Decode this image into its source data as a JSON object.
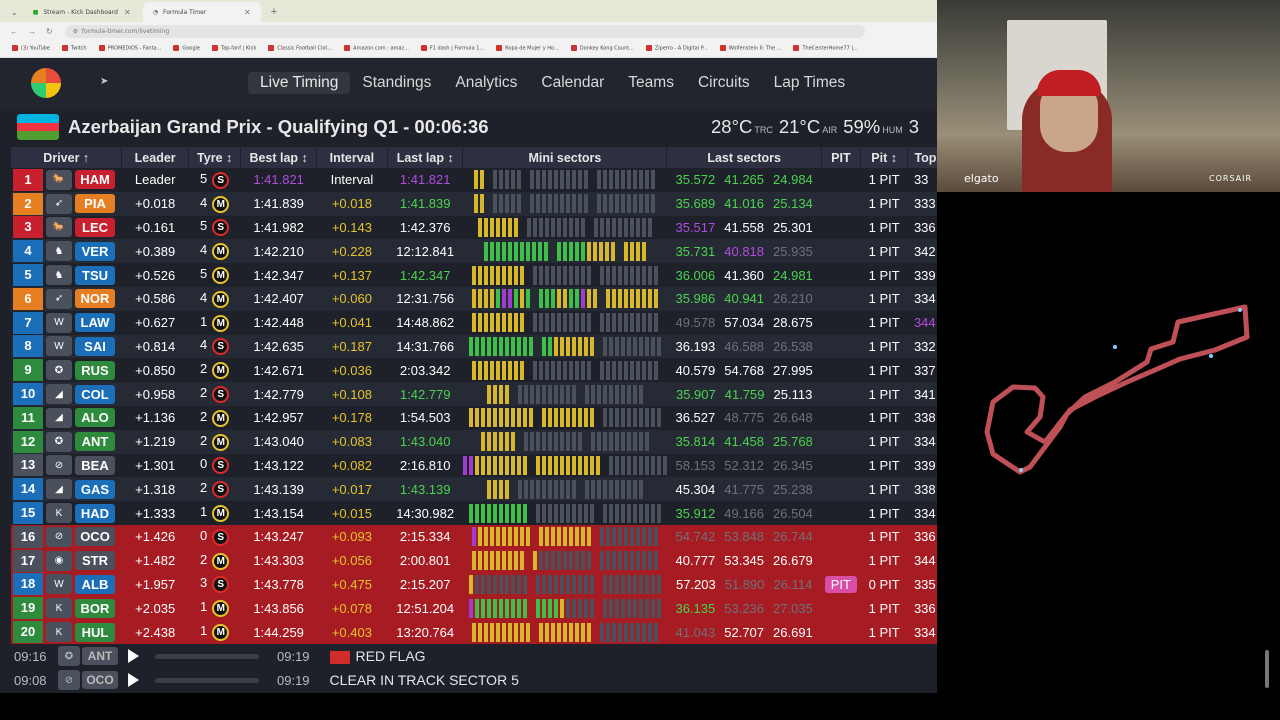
{
  "browser": {
    "tabs": [
      {
        "title": "Stream - Kick Dashboard",
        "active": false
      },
      {
        "title": "Formula Timer",
        "active": true
      }
    ],
    "url": "formula-timer.com/livetiming",
    "bookmarks": [
      "(3) YouTube",
      "Twitch",
      "PROMEDIOS - Fanta...",
      "Google",
      "Tap-fanf | Kick",
      "Classic Football Clot...",
      "Amazon.com : amaz...",
      "F1 dash | Formula 1...",
      "Ropa de Mujer y Ho...",
      "Donkey Kong Count...",
      "Ziperro - A Digital P...",
      "Wolfenstein II: The ...",
      "TheCenterHome77 |..."
    ]
  },
  "app": {
    "nav": [
      "Live Timing",
      "Standings",
      "Analytics",
      "Calendar",
      "Teams",
      "Circuits",
      "Lap Times"
    ],
    "active_nav": "Live Timing",
    "session_title": "Azerbaijan Grand Prix - Qualifying Q1 - 00:06:36",
    "weather": {
      "track_temp": "28°C",
      "track_label": "TRC",
      "air_temp": "21°C",
      "air_label": "AIR",
      "humidity": "59%",
      "humidity_label": "HUM",
      "extra": "3"
    }
  },
  "table": {
    "headers": [
      "Driver ↑",
      "Leader",
      "Tyre ↕",
      "Best lap ↕",
      "Interval",
      "Last lap ↕",
      "Mini sectors",
      "Last sectors",
      "PIT",
      "Pit ↕",
      "Top"
    ],
    "rows": [
      {
        "pos": "1",
        "team": "Ferrari",
        "code": "HAM",
        "codecolor": "#c8202e",
        "leader": "Leader",
        "tyre_laps": "5",
        "tyre": "S",
        "best": "1:41.821",
        "best_c": "purple",
        "interval": "Interval",
        "int_c": "",
        "last": "1:41.821",
        "last_c": "purple",
        "mini": "yy nnnnn nnnnnnnnnn nnnnnnnnnn",
        "s1": "35.572",
        "s1c": "green",
        "s2": "41.265",
        "s2c": "green",
        "s3": "24.984",
        "s3c": "green",
        "pit": "",
        "pits": "1 PIT",
        "top": "33",
        "state": "odd"
      },
      {
        "pos": "2",
        "team": "McLaren",
        "code": "PIA",
        "codecolor": "#e67e22",
        "leader": "+0.018",
        "tyre_laps": "4",
        "tyre": "M",
        "best": "1:41.839",
        "best_c": "",
        "interval": "+0.018",
        "int_c": "yellow",
        "last": "1:41.839",
        "last_c": "green",
        "mini": "yy nnnnn nnnnnnnnnn nnnnnnnnnn",
        "s1": "35.689",
        "s1c": "green",
        "s2": "41.016",
        "s2c": "green",
        "s3": "25.134",
        "s3c": "green",
        "pit": "",
        "pits": "1 PIT",
        "top": "333",
        "state": "even"
      },
      {
        "pos": "3",
        "team": "Ferrari",
        "code": "LEC",
        "codecolor": "#c8202e",
        "leader": "+0.161",
        "tyre_laps": "5",
        "tyre": "S",
        "best": "1:41.982",
        "best_c": "",
        "interval": "+0.143",
        "int_c": "yellow",
        "last": "1:42.376",
        "last_c": "",
        "mini": "yyyyyyy nnnnnnnnnn nnnnnnnnnn",
        "s1": "35.517",
        "s1c": "purple",
        "s2": "41.558",
        "s2c": "",
        "s3": "25.301",
        "s3c": "",
        "pit": "",
        "pits": "1 PIT",
        "top": "336",
        "state": "odd"
      },
      {
        "pos": "4",
        "team": "Red Bull",
        "code": "VER",
        "codecolor": "#1a6fb8",
        "leader": "+0.389",
        "tyre_laps": "4",
        "tyre": "M",
        "best": "1:42.210",
        "best_c": "",
        "interval": "+0.228",
        "int_c": "yellow",
        "last": "12:12.841",
        "last_c": "",
        "mini": "ggggggggggg gggggyyyyy yyyy",
        "s1": "35.731",
        "s1c": "green",
        "s2": "40.818",
        "s2c": "purple",
        "s3": "25.935",
        "s3c": "grey",
        "pit": "",
        "pits": "1 PIT",
        "top": "342",
        "state": "even"
      },
      {
        "pos": "5",
        "team": "Racing Bulls",
        "code": "TSU",
        "codecolor": "#1a6fb8",
        "leader": "+0.526",
        "tyre_laps": "5",
        "tyre": "M",
        "best": "1:42.347",
        "best_c": "",
        "interval": "+0.137",
        "int_c": "yellow",
        "last": "1:42.347",
        "last_c": "green",
        "mini": "yyyyyyyyy nnnnnnnnnn nnnnnnnnnn",
        "s1": "36.006",
        "s1c": "green",
        "s2": "41.360",
        "s2c": "",
        "s3": "24.981",
        "s3c": "green",
        "pit": "",
        "pits": "1 PIT",
        "top": "339",
        "state": "odd"
      },
      {
        "pos": "6",
        "team": "McLaren",
        "code": "NOR",
        "codecolor": "#e67e22",
        "leader": "+0.586",
        "tyre_laps": "4",
        "tyre": "M",
        "best": "1:42.407",
        "best_c": "",
        "interval": "+0.060",
        "int_c": "yellow",
        "last": "12:31.756",
        "last_c": "",
        "mini": "yyyygppgyg gggyyggpyy yyyyyyyyy",
        "s1": "35.986",
        "s1c": "green",
        "s2": "40.941",
        "s2c": "green",
        "s3": "26.210",
        "s3c": "grey",
        "pit": "",
        "pits": "1 PIT",
        "top": "334",
        "state": "even"
      },
      {
        "pos": "7",
        "team": "Williams",
        "code": "LAW",
        "codecolor": "#1a6fb8",
        "leader": "+0.627",
        "tyre_laps": "1",
        "tyre": "M",
        "best": "1:42.448",
        "best_c": "",
        "interval": "+0.041",
        "int_c": "yellow",
        "last": "14:48.862",
        "last_c": "",
        "mini": "yyyyyyyyy nnnnnnnnnn nnnnnnnnnn",
        "s1": "49.578",
        "s1c": "grey",
        "s2": "57.034",
        "s2c": "",
        "s3": "28.675",
        "s3c": "",
        "pit": "",
        "pits": "1 PIT",
        "top": "344",
        "state": "odd"
      },
      {
        "pos": "8",
        "team": "Williams",
        "code": "SAI",
        "codecolor": "#1a6fb8",
        "leader": "+0.814",
        "tyre_laps": "4",
        "tyre": "S",
        "best": "1:42.635",
        "best_c": "",
        "interval": "+0.187",
        "int_c": "yellow",
        "last": "14:31.766",
        "last_c": "",
        "mini": "ggggggggggg ggyyyyyyy nnnnnnnnnn",
        "s1": "36.193",
        "s1c": "",
        "s2": "46.588",
        "s2c": "grey",
        "s3": "26.538",
        "s3c": "grey",
        "pit": "",
        "pits": "1 PIT",
        "top": "332",
        "state": "even"
      },
      {
        "pos": "9",
        "team": "Mercedes",
        "code": "RUS",
        "codecolor": "#2e8b3e",
        "leader": "+0.850",
        "tyre_laps": "2",
        "tyre": "M",
        "best": "1:42.671",
        "best_c": "",
        "interval": "+0.036",
        "int_c": "yellow",
        "last": "2:03.342",
        "last_c": "",
        "mini": "yyyyyyyyy nnnnnnnnnn nnnnnnnnnn",
        "s1": "40.579",
        "s1c": "",
        "s2": "54.768",
        "s2c": "",
        "s3": "27.995",
        "s3c": "",
        "pit": "",
        "pits": "1 PIT",
        "top": "337",
        "state": "odd"
      },
      {
        "pos": "10",
        "team": "Alpine",
        "code": "COL",
        "codecolor": "#1a6fb8",
        "leader": "+0.958",
        "tyre_laps": "2",
        "tyre": "S",
        "best": "1:42.779",
        "best_c": "",
        "interval": "+0.108",
        "int_c": "yellow",
        "last": "1:42.779",
        "last_c": "green",
        "mini": "yyyy nnnnnnnnnn nnnnnnnnnn",
        "s1": "35.907",
        "s1c": "green",
        "s2": "41.759",
        "s2c": "green",
        "s3": "25.113",
        "s3c": "",
        "pit": "",
        "pits": "1 PIT",
        "top": "341",
        "state": "even"
      },
      {
        "pos": "11",
        "team": "Alpine",
        "code": "ALO",
        "codecolor": "#2e8b3e",
        "leader": "+1.136",
        "tyre_laps": "2",
        "tyre": "M",
        "best": "1:42.957",
        "best_c": "",
        "interval": "+0.178",
        "int_c": "yellow",
        "last": "1:54.503",
        "last_c": "",
        "mini": "yyyyyyyyyyy yyyyyyyyy nnnnnnnnnn",
        "s1": "36.527",
        "s1c": "",
        "s2": "48.775",
        "s2c": "grey",
        "s3": "26.648",
        "s3c": "grey",
        "pit": "",
        "pits": "1 PIT",
        "top": "338",
        "state": "odd"
      },
      {
        "pos": "12",
        "team": "Mercedes",
        "code": "ANT",
        "codecolor": "#2e8b3e",
        "leader": "+1.219",
        "tyre_laps": "2",
        "tyre": "M",
        "best": "1:43.040",
        "best_c": "",
        "interval": "+0.083",
        "int_c": "yellow",
        "last": "1:43.040",
        "last_c": "green",
        "mini": "yyyyyy nnnnnnnnnn nnnnnnnnnn",
        "s1": "35.814",
        "s1c": "green",
        "s2": "41.458",
        "s2c": "green",
        "s3": "25.768",
        "s3c": "green",
        "pit": "",
        "pits": "1 PIT",
        "top": "334",
        "state": "even"
      },
      {
        "pos": "13",
        "team": "Haas",
        "code": "BEA",
        "codecolor": "#4a505c",
        "leader": "+1.301",
        "tyre_laps": "0",
        "tyre": "S",
        "best": "1:43.122",
        "best_c": "",
        "interval": "+0.082",
        "int_c": "yellow",
        "last": "2:16.810",
        "last_c": "",
        "mini": "ppyyyyyyyyy yyyyyyyyyyy nnnnnnnnnn",
        "s1": "58.153",
        "s1c": "grey",
        "s2": "52.312",
        "s2c": "grey",
        "s3": "26.345",
        "s3c": "grey",
        "pit": "",
        "pits": "1 PIT",
        "top": "339",
        "state": "odd"
      },
      {
        "pos": "14",
        "team": "Alpine",
        "code": "GAS",
        "codecolor": "#1a6fb8",
        "leader": "+1.318",
        "tyre_laps": "2",
        "tyre": "S",
        "best": "1:43.139",
        "best_c": "",
        "interval": "+0.017",
        "int_c": "yellow",
        "last": "1:43.139",
        "last_c": "green",
        "mini": "yyyy nnnnnnnnnn nnnnnnnnnn",
        "s1": "45.304",
        "s1c": "",
        "s2": "41.775",
        "s2c": "grey",
        "s3": "25.238",
        "s3c": "grey",
        "pit": "",
        "pits": "1 PIT",
        "top": "338",
        "state": "even"
      },
      {
        "pos": "15",
        "team": "Sauber",
        "code": "HAD",
        "codecolor": "#1a6fb8",
        "leader": "+1.333",
        "tyre_laps": "1",
        "tyre": "M",
        "best": "1:43.154",
        "best_c": "",
        "interval": "+0.015",
        "int_c": "yellow",
        "last": "14:30.982",
        "last_c": "",
        "mini": "gggggggggg nnnnnnnnnn nnnnnnnnnn",
        "s1": "35.912",
        "s1c": "green",
        "s2": "49.166",
        "s2c": "grey",
        "s3": "26.504",
        "s3c": "grey",
        "pit": "",
        "pits": "1 PIT",
        "top": "334",
        "state": "odd"
      },
      {
        "pos": "16",
        "team": "Haas",
        "code": "OCO",
        "codecolor": "#4a505c",
        "leader": "+1.426",
        "tyre_laps": "0",
        "tyre": "S",
        "best": "1:43.247",
        "best_c": "",
        "interval": "+0.093",
        "int_c": "yellow",
        "last": "2:15.334",
        "last_c": "",
        "mini": "pyyyyyyyyy yyyyyyyyy nnnnnnnnnn",
        "s1": "54.742",
        "s1c": "grey",
        "s2": "53.848",
        "s2c": "grey",
        "s3": "26.744",
        "s3c": "grey",
        "pit": "",
        "pits": "1 PIT",
        "top": "336",
        "state": "out"
      },
      {
        "pos": "17",
        "team": "Aston Martin",
        "code": "STR",
        "codecolor": "#4a505c",
        "leader": "+1.482",
        "tyre_laps": "2",
        "tyre": "M",
        "best": "1:43.303",
        "best_c": "",
        "interval": "+0.056",
        "int_c": "yellow",
        "last": "2:00.801",
        "last_c": "",
        "mini": "yyyyyyyyy ynnnnnnnnn nnnnnnnnnn",
        "s1": "40.777",
        "s1c": "",
        "s2": "53.345",
        "s2c": "",
        "s3": "26.679",
        "s3c": "",
        "pit": "",
        "pits": "1 PIT",
        "top": "344",
        "state": "out"
      },
      {
        "pos": "18",
        "team": "Williams",
        "code": "ALB",
        "codecolor": "#1a6fb8",
        "leader": "+1.957",
        "tyre_laps": "3",
        "tyre": "S",
        "best": "1:43.778",
        "best_c": "",
        "interval": "+0.475",
        "int_c": "yellow",
        "last": "2:15.207",
        "last_c": "",
        "mini": "ynnnnnnnnn nnnnnnnnnn nnnnnnnnnn",
        "s1": "57.203",
        "s1c": "",
        "s2": "51.890",
        "s2c": "grey",
        "s3": "26.114",
        "s3c": "grey",
        "pit": "PIT",
        "pits": "0 PIT",
        "top": "335",
        "state": "out"
      },
      {
        "pos": "19",
        "team": "Sauber",
        "code": "BOR",
        "codecolor": "#2e8b3e",
        "leader": "+2.035",
        "tyre_laps": "1",
        "tyre": "M",
        "best": "1:43.856",
        "best_c": "",
        "interval": "+0.078",
        "int_c": "yellow",
        "last": "12:51.204",
        "last_c": "",
        "mini": "pggggggggg ggggynnnnn nnnnnnnnnn",
        "s1": "36.135",
        "s1c": "green",
        "s2": "53.236",
        "s2c": "grey",
        "s3": "27.035",
        "s3c": "grey",
        "pit": "",
        "pits": "1 PIT",
        "top": "336",
        "state": "out"
      },
      {
        "pos": "20",
        "team": "Sauber",
        "code": "HUL",
        "codecolor": "#2e8b3e",
        "leader": "+2.438",
        "tyre_laps": "1",
        "tyre": "M",
        "best": "1:44.259",
        "best_c": "",
        "interval": "+0.403",
        "int_c": "yellow",
        "last": "13:20.764",
        "last_c": "",
        "mini": "yyyyyyyyyy yyyyyyyyy nnnnnnnnnn",
        "s1": "41.043",
        "s1c": "grey",
        "s2": "52.707",
        "s2c": "",
        "s3": "26.691",
        "s3c": "",
        "pit": "",
        "pits": "1 PIT",
        "top": "334",
        "state": "out"
      }
    ]
  },
  "radio": [
    {
      "time": "09:16",
      "driver": "ANT",
      "rc_time": "09:19",
      "message": "RED FLAG",
      "flag": true
    },
    {
      "time": "09:08",
      "driver": "OCO",
      "rc_time": "09:19",
      "message": "CLEAR IN TRACK SECTOR 5",
      "flag": false
    }
  ],
  "webcam": {
    "brand": "elgato",
    "sponsor": "CORSAIR"
  }
}
